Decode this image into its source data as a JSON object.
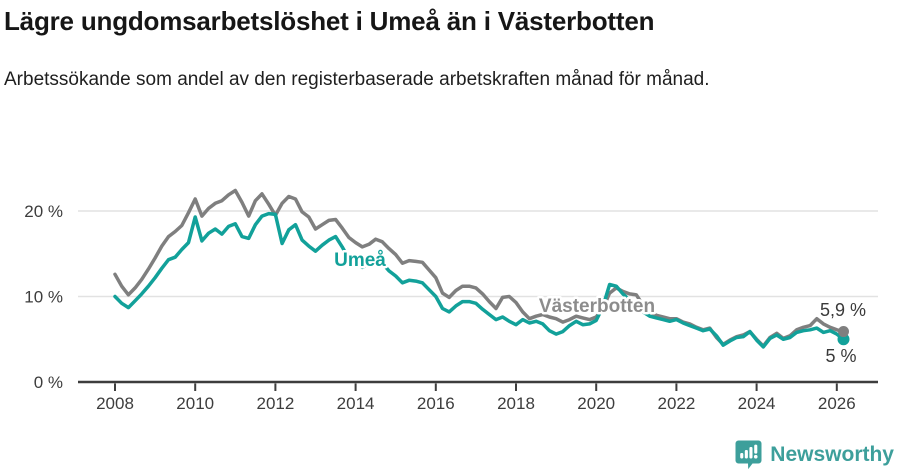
{
  "title": "Lägre ungdomsarbetslöshet i Umeå än i Västerbotten",
  "subtitle": "Arbetssökande som andel av den registerbaserade arbetskraften månad för månad.",
  "branding": {
    "name": "Newsworthy",
    "color": "#3d9f9b"
  },
  "chart_data": {
    "type": "line",
    "title": "Lägre ungdomsarbetslöshet i Umeå än i Västerbotten",
    "xlabel": "",
    "ylabel": "Arbetssökande som andel av den registerbaserade arbetskraften",
    "x_start": 2008.0,
    "x_step_years": 0.16667,
    "xlim": [
      2007.1,
      2027.0
    ],
    "ylim": [
      0,
      23.5
    ],
    "grid": true,
    "legend_position": "inline",
    "x_ticks": [
      2008,
      2010,
      2012,
      2014,
      2016,
      2018,
      2020,
      2022,
      2024,
      2026
    ],
    "y_ticks": [
      {
        "value": 0,
        "label": "0 %"
      },
      {
        "value": 10,
        "label": "10 %"
      },
      {
        "value": 20,
        "label": "20 %"
      }
    ],
    "series": [
      {
        "name": "Västerbotten",
        "color": "#7f7f7f",
        "label_color": "#8c8c8c",
        "inline_label": {
          "text": "Västerbotten",
          "px": 597,
          "py": 312
        },
        "end_label": {
          "text": "5,9 %",
          "px": 843,
          "py": 316
        },
        "end_value": 5.9,
        "values": [
          12.6,
          11.2,
          10.2,
          11.0,
          12.0,
          13.2,
          14.5,
          15.9,
          17.0,
          17.6,
          18.3,
          19.8,
          21.4,
          19.4,
          20.3,
          20.9,
          21.2,
          21.9,
          22.4,
          21.0,
          19.4,
          21.2,
          22.0,
          20.8,
          19.5,
          20.9,
          21.7,
          21.4,
          19.9,
          19.3,
          17.9,
          18.4,
          18.9,
          19.0,
          18.0,
          16.9,
          16.3,
          15.8,
          16.1,
          16.7,
          16.4,
          15.6,
          14.9,
          13.9,
          14.2,
          14.1,
          14.0,
          13.1,
          12.2,
          10.4,
          9.9,
          10.7,
          11.2,
          11.2,
          11.0,
          10.3,
          9.4,
          8.6,
          9.9,
          10.0,
          9.3,
          8.2,
          7.4,
          7.7,
          7.9,
          7.6,
          7.4,
          7.0,
          7.3,
          7.7,
          7.5,
          7.3,
          7.6,
          8.6,
          10.4,
          11.0,
          10.6,
          10.3,
          10.2,
          9.0,
          8.2,
          7.8,
          7.6,
          7.4,
          7.4,
          7.0,
          6.8,
          6.4,
          6.1,
          6.3,
          5.2,
          4.4,
          4.9,
          5.3,
          5.5,
          5.9,
          5.0,
          4.2,
          5.2,
          5.7,
          5.1,
          5.4,
          6.1,
          6.4,
          6.6,
          7.4,
          6.8,
          6.4,
          6.1,
          5.9
        ]
      },
      {
        "name": "Umeå",
        "color": "#12a19a",
        "label_color": "#12a19a",
        "inline_label": {
          "text": "Umeå",
          "px": 360,
          "py": 266
        },
        "end_label": {
          "text": "5 %",
          "px": 841,
          "py": 362
        },
        "end_value": 5.0,
        "values": [
          10.0,
          9.2,
          8.7,
          9.5,
          10.3,
          11.2,
          12.2,
          13.3,
          14.3,
          14.6,
          15.5,
          16.3,
          19.3,
          16.5,
          17.4,
          17.9,
          17.3,
          18.2,
          18.5,
          17.0,
          16.8,
          18.4,
          19.4,
          19.7,
          19.6,
          16.2,
          17.8,
          18.4,
          16.6,
          15.9,
          15.3,
          16.0,
          16.6,
          17.0,
          15.8,
          14.4,
          13.9,
          13.4,
          13.8,
          14.3,
          13.9,
          13.0,
          12.4,
          11.6,
          11.9,
          11.8,
          11.6,
          10.8,
          10.0,
          8.6,
          8.2,
          8.9,
          9.4,
          9.4,
          9.2,
          8.5,
          7.9,
          7.3,
          7.6,
          7.1,
          6.7,
          7.3,
          6.9,
          7.1,
          6.8,
          6.0,
          5.6,
          5.9,
          6.6,
          7.1,
          6.7,
          6.8,
          7.2,
          8.8,
          11.4,
          11.2,
          10.3,
          9.6,
          8.9,
          8.2,
          7.7,
          7.5,
          7.3,
          7.1,
          7.3,
          6.9,
          6.6,
          6.3,
          6.0,
          6.2,
          5.4,
          4.3,
          4.8,
          5.2,
          5.3,
          5.9,
          4.9,
          4.1,
          5.1,
          5.5,
          5.0,
          5.2,
          5.8,
          6.0,
          6.1,
          6.3,
          5.8,
          6.0,
          5.6,
          5.0
        ]
      }
    ]
  }
}
